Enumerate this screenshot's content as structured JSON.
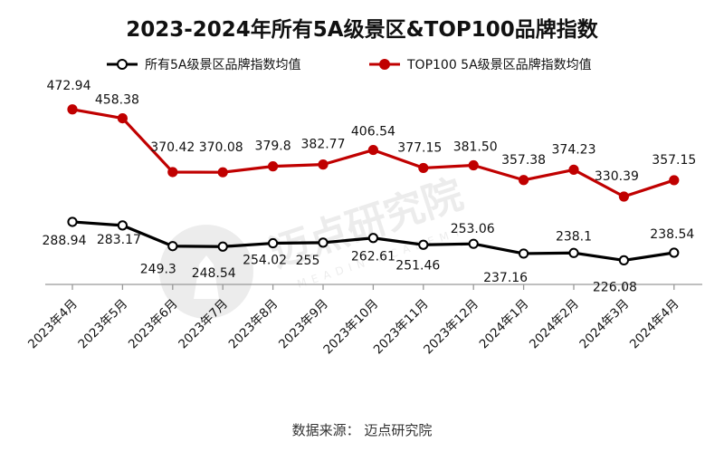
{
  "title": "2023-2024年所有5A级景区&TOP100品牌指数",
  "source": "数据来源：  迈点研究院",
  "watermark": {
    "text": "迈点研究院",
    "subtext": "MEADIN ACADEMY"
  },
  "colors": {
    "all5a": "#000000",
    "top100": "#c00000",
    "axis": "#999999"
  },
  "chart_data": {
    "type": "line",
    "title": "2023-2024年所有5A级景区&TOP100品牌指数",
    "legend_position": "top",
    "grid": false,
    "categories": [
      "2023年4月",
      "2023年5月",
      "2023年6月",
      "2023年7月",
      "2023年8月",
      "2023年9月",
      "2023年10月",
      "2023年11月",
      "2023年12月",
      "2024年1月",
      "2024年2月",
      "2024年3月",
      "2024年4月"
    ],
    "ylim": [
      0,
      500
    ],
    "series": [
      {
        "name": "所有5A级景区品牌指数均值",
        "color": "#000000",
        "marker": "hollow-circle",
        "values": [
          288.94,
          283.17,
          249.3,
          248.54,
          254.02,
          255,
          262.61,
          251.46,
          253.06,
          237.16,
          238.1,
          226.08,
          238.54
        ],
        "labels": [
          "288.94",
          "283.17",
          "249.3",
          "248.54",
          "254.02",
          "255",
          "262.61",
          "251.46",
          "253.06",
          "237.16",
          "238.1",
          "226.08",
          "238.54"
        ]
      },
      {
        "name": "TOP100 5A级景区品牌指数均值",
        "color": "#c00000",
        "marker": "filled-circle",
        "values": [
          472.94,
          458.38,
          370.42,
          370.08,
          379.8,
          382.77,
          406.54,
          377.15,
          381.5,
          357.38,
          374.23,
          330.39,
          357.15
        ],
        "labels": [
          "472.94",
          "458.38",
          "370.42",
          "370.08",
          "379.8",
          "382.77",
          "406.54",
          "377.15",
          "381.50",
          "357.38",
          "374.23",
          "330.39",
          "357.15"
        ]
      }
    ]
  }
}
